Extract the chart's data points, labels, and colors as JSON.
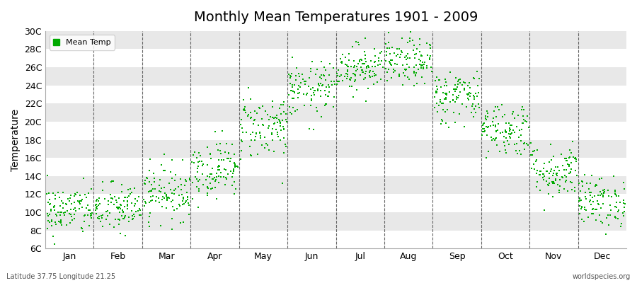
{
  "title": "Monthly Mean Temperatures 1901 - 2009",
  "ylabel": "Temperature",
  "subtitle_left": "Latitude 37.75 Longitude 21.25",
  "subtitle_right": "worldspecies.org",
  "legend_label": "Mean Temp",
  "dot_color": "#00AA00",
  "background_color": "#FFFFFF",
  "stripe_color": "#E8E8E8",
  "ylim": [
    6,
    30
  ],
  "ytick_labels": [
    "6C",
    "8C",
    "10C",
    "12C",
    "14C",
    "16C",
    "18C",
    "20C",
    "22C",
    "24C",
    "26C",
    "28C",
    "30C"
  ],
  "ytick_values": [
    6,
    8,
    10,
    12,
    14,
    16,
    18,
    20,
    22,
    24,
    26,
    28,
    30
  ],
  "months": [
    "Jan",
    "Feb",
    "Mar",
    "Apr",
    "May",
    "Jun",
    "Jul",
    "Aug",
    "Sep",
    "Oct",
    "Nov",
    "Dec"
  ],
  "month_centers": [
    0.5,
    1.5,
    2.5,
    3.5,
    4.5,
    5.5,
    6.5,
    7.5,
    8.5,
    9.5,
    10.5,
    11.5
  ],
  "month_edges": [
    0,
    1,
    2,
    3,
    4,
    5,
    6,
    7,
    8,
    9,
    10,
    11,
    12
  ],
  "mean_temps": [
    10.2,
    10.4,
    12.2,
    14.8,
    19.5,
    23.5,
    26.0,
    26.5,
    22.8,
    19.2,
    14.5,
    11.2
  ],
  "spread": [
    1.4,
    1.4,
    1.5,
    1.6,
    1.8,
    1.5,
    1.3,
    1.3,
    1.5,
    1.5,
    1.5,
    1.4
  ],
  "n_years": 109,
  "seed": 42
}
